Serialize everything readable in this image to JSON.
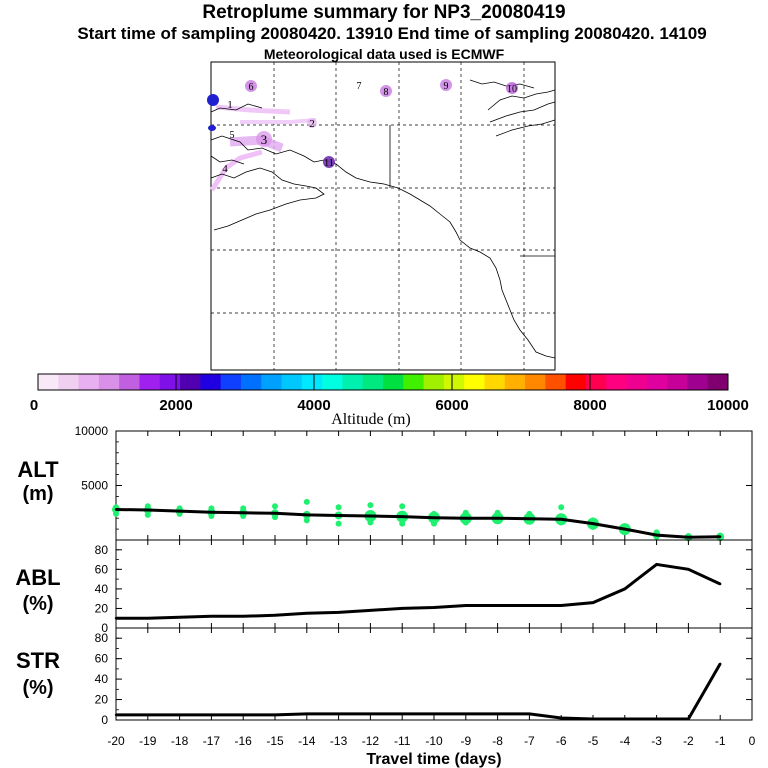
{
  "header": {
    "title": "Retroplume summary for NP3_20080419",
    "subtitle": "Start time of sampling 20080420. 13910     End time of sampling 20080420. 14109",
    "met": "Meteorological data used is ECMWF"
  },
  "map": {
    "markers": [
      {
        "label": "1",
        "color": "#d890e8"
      },
      {
        "label": "2",
        "color": "#e0a8f0"
      },
      {
        "label": "3",
        "color": "#d890e8"
      },
      {
        "label": "4",
        "color": "#e0b0f0"
      },
      {
        "label": "5",
        "color": "#d890e8"
      },
      {
        "label": "6",
        "color": "#c878e0"
      },
      {
        "label": "7",
        "color": "#d890e8"
      },
      {
        "label": "8",
        "color": "#c878e0"
      },
      {
        "label": "9",
        "color": "#c878e0"
      },
      {
        "label": "10",
        "color": "#b860d8"
      },
      {
        "label": "11",
        "color": "#7030b0"
      }
    ]
  },
  "colorbar": {
    "label": "Altitude (m)",
    "ticks": [
      "0",
      "2000",
      "4000",
      "6000",
      "8000",
      "10000"
    ],
    "colors": [
      "#f8e8f8",
      "#f0d0f0",
      "#e8b0f0",
      "#d890e8",
      "#c060e0",
      "#a020f0",
      "#8010e8",
      "#5000b0",
      "#2000e0",
      "#1040ff",
      "#0070ff",
      "#00a0ff",
      "#00c8ff",
      "#00e8ff",
      "#00ffe0",
      "#00f0b0",
      "#00e880",
      "#00e040",
      "#40f000",
      "#a0f000",
      "#d0f800",
      "#ffff00",
      "#ffd800",
      "#ffb000",
      "#ff8800",
      "#ff5000",
      "#ff0000",
      "#ff0050",
      "#ff0080",
      "#f00090",
      "#e000a0",
      "#c8009a",
      "#a00090",
      "#800070"
    ]
  },
  "chart_data": [
    {
      "type": "line",
      "panel": "ALT",
      "ylabel_top": "ALT",
      "ylabel_bottom": "(m)",
      "xlim": [
        -20,
        0
      ],
      "ylim": [
        0,
        10000
      ],
      "yticks": [
        "5000",
        "10000"
      ],
      "x": [
        -20,
        -19,
        -18,
        -17,
        -16,
        -15,
        -14,
        -13,
        -12,
        -11,
        -10,
        -9,
        -8,
        -7,
        -6,
        -5,
        -4,
        -3,
        -2,
        -1
      ],
      "values": [
        2800,
        2750,
        2650,
        2550,
        2500,
        2450,
        2300,
        2250,
        2200,
        2150,
        2050,
        2000,
        2000,
        1950,
        1900,
        1500,
        1000,
        450,
        250,
        300
      ],
      "dots": [
        {
          "x": -20,
          "y": [
            2800,
            2400,
            3000
          ]
        },
        {
          "x": -19,
          "y": [
            2750,
            2300,
            3100
          ]
        },
        {
          "x": -18,
          "y": [
            2650,
            2400,
            2900
          ]
        },
        {
          "x": -17,
          "y": [
            2550,
            2200,
            2900
          ]
        },
        {
          "x": -16,
          "y": [
            2500,
            2200,
            2900
          ]
        },
        {
          "x": -15,
          "y": [
            2450,
            2100,
            3100
          ]
        },
        {
          "x": -14,
          "y": [
            2300,
            1800,
            3500
          ]
        },
        {
          "x": -13,
          "y": [
            2250,
            1500,
            3000
          ]
        },
        {
          "x": -12,
          "y": [
            2200,
            1600,
            3200
          ]
        },
        {
          "x": -11,
          "y": [
            2150,
            1500,
            3100
          ]
        },
        {
          "x": -10,
          "y": [
            2050,
            1500,
            2400
          ]
        },
        {
          "x": -9,
          "y": [
            2000,
            1600,
            2500
          ]
        },
        {
          "x": -8,
          "y": [
            2000,
            1800,
            2500
          ]
        },
        {
          "x": -7,
          "y": [
            1950,
            1800,
            2400
          ]
        },
        {
          "x": -6,
          "y": [
            1900,
            1600,
            3000
          ]
        },
        {
          "x": -5,
          "y": [
            1500,
            1200,
            1800
          ]
        },
        {
          "x": -4,
          "y": [
            1000,
            800,
            1200
          ]
        },
        {
          "x": -3,
          "y": [
            450,
            300,
            700
          ]
        },
        {
          "x": -2,
          "y": [
            250,
            150,
            350
          ]
        },
        {
          "x": -1,
          "y": [
            300,
            150,
            400
          ]
        }
      ]
    },
    {
      "type": "line",
      "panel": "ABL",
      "ylabel_top": "ABL",
      "ylabel_bottom": "(%)",
      "xlim": [
        -20,
        0
      ],
      "ylim": [
        0,
        90
      ],
      "yticks": [
        "0",
        "20",
        "40",
        "60",
        "80"
      ],
      "x": [
        -20,
        -19,
        -18,
        -17,
        -16,
        -15,
        -14,
        -13,
        -12,
        -11,
        -10,
        -9,
        -8,
        -7,
        -6,
        -5,
        -4,
        -3,
        -2,
        -1
      ],
      "values": [
        10,
        10,
        11,
        12,
        12,
        13,
        15,
        16,
        18,
        20,
        21,
        23,
        23,
        23,
        23,
        26,
        40,
        65,
        60,
        45
      ]
    },
    {
      "type": "line",
      "panel": "STR",
      "ylabel_top": "STR",
      "ylabel_bottom": "(%)",
      "xlim": [
        -20,
        0
      ],
      "ylim": [
        0,
        90
      ],
      "yticks": [
        "0",
        "20",
        "40",
        "60",
        "80"
      ],
      "xticks": [
        "-20",
        "-19",
        "-18",
        "-17",
        "-16",
        "-15",
        "-14",
        "-13",
        "-12",
        "-11",
        "-10",
        "-9",
        "-8",
        "-7",
        "-6",
        "-5",
        "-4",
        "-3",
        "-2",
        "-1",
        "0"
      ],
      "xlabel": "Travel time (days)",
      "x": [
        -20,
        -19,
        -18,
        -17,
        -16,
        -15,
        -14,
        -13,
        -12,
        -11,
        -10,
        -9,
        -8,
        -7,
        -6,
        -5,
        -4,
        -3,
        -2,
        -1
      ],
      "values": [
        5,
        5,
        5,
        5,
        5,
        5,
        6,
        6,
        6,
        6,
        6,
        6,
        6,
        6,
        2,
        1,
        1,
        1,
        1,
        55
      ]
    }
  ]
}
